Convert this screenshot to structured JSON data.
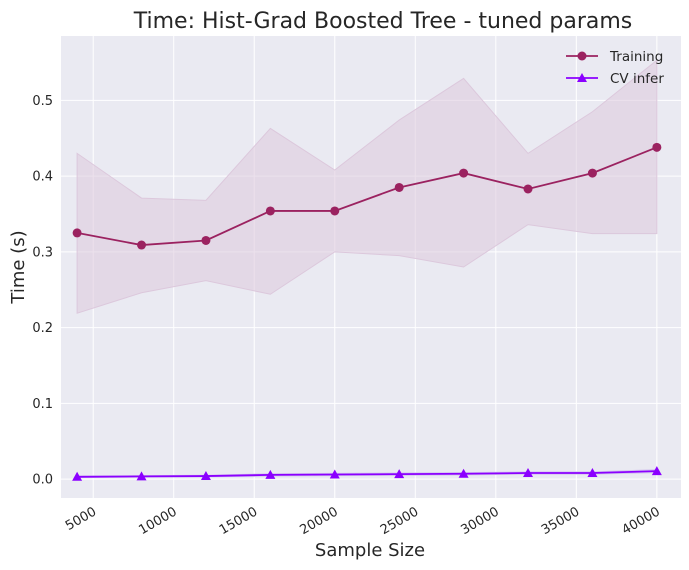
{
  "chart_data": {
    "type": "line",
    "title": "Time: Hist-Grad Boosted Tree - tuned params",
    "xlabel": "Sample Size",
    "ylabel": "Time (s)",
    "xlim": [
      3000,
      41500
    ],
    "ylim": [
      -0.025,
      0.585
    ],
    "xticks": [
      5000,
      10000,
      15000,
      20000,
      25000,
      30000,
      35000,
      40000
    ],
    "yticks": [
      0.0,
      0.1,
      0.2,
      0.3,
      0.4,
      0.5
    ],
    "ytick_labels": [
      "0.0",
      "0.1",
      "0.2",
      "0.3",
      "0.4",
      "0.5"
    ],
    "grid": true,
    "legend_position": "top-right",
    "x": [
      4000,
      8000,
      12000,
      16000,
      20000,
      24000,
      28000,
      32000,
      36000,
      40000
    ],
    "series": [
      {
        "name": "Training",
        "marker": "circle",
        "color": "#9b2260",
        "values": [
          0.325,
          0.309,
          0.315,
          0.354,
          0.354,
          0.385,
          0.404,
          0.383,
          0.404,
          0.438
        ],
        "band_lower": [
          0.219,
          0.246,
          0.262,
          0.244,
          0.3,
          0.295,
          0.28,
          0.336,
          0.324,
          0.324
        ],
        "band_upper": [
          0.43,
          0.371,
          0.368,
          0.463,
          0.408,
          0.474,
          0.529,
          0.43,
          0.485,
          0.553
        ],
        "band_color": "#dcc8dc"
      },
      {
        "name": "CV infer",
        "marker": "triangle",
        "color": "#8b00ff",
        "values": [
          0.003,
          0.0035,
          0.004,
          0.0055,
          0.006,
          0.0065,
          0.007,
          0.008,
          0.008,
          0.0105
        ],
        "band_lower": [
          0.002,
          0.0025,
          0.003,
          0.004,
          0.0045,
          0.005,
          0.0055,
          0.0065,
          0.0065,
          0.0085
        ],
        "band_upper": [
          0.004,
          0.0045,
          0.005,
          0.007,
          0.0075,
          0.008,
          0.0085,
          0.0095,
          0.0095,
          0.0125
        ],
        "band_color": "#d4c4ee"
      }
    ]
  }
}
